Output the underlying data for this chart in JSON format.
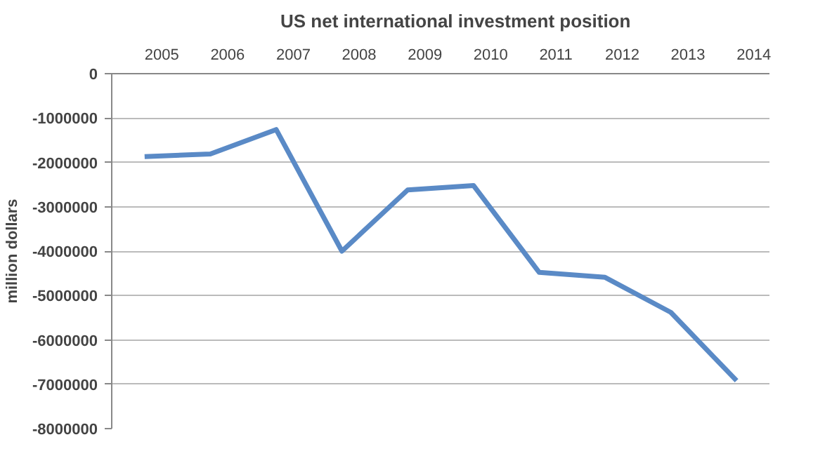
{
  "chart_data": {
    "type": "line",
    "title": "US net international investment position",
    "ylabel": "million dollars",
    "categories": [
      "2005",
      "2006",
      "2007",
      "2008",
      "2009",
      "2010",
      "2011",
      "2012",
      "2013",
      "2014"
    ],
    "series": [
      {
        "color": "#5a8ac6",
        "values": [
          -1870000,
          -1810000,
          -1260000,
          -4000000,
          -2620000,
          -2520000,
          -4480000,
          -4590000,
          -5380000,
          -6920000
        ]
      }
    ],
    "ylim": [
      -8000000,
      0
    ],
    "yticks": [
      -8000000,
      -7000000,
      -6000000,
      -5000000,
      -4000000,
      -3000000,
      -2000000,
      -1000000,
      0
    ],
    "grid": "y",
    "marker": "none",
    "line_style": "solid"
  }
}
